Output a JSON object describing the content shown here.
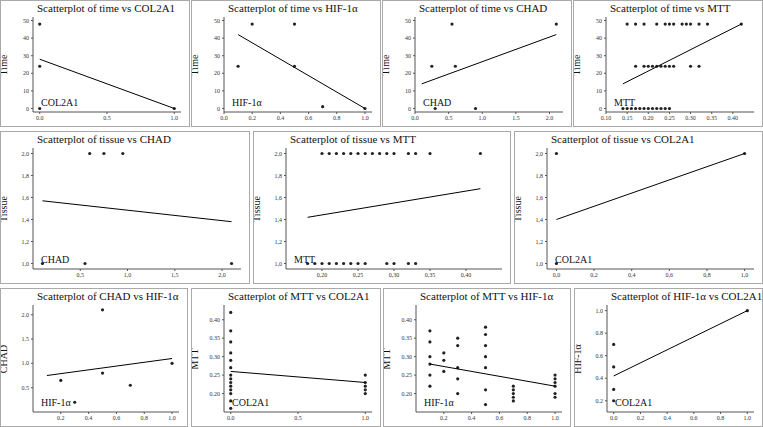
{
  "chart_data": [
    {
      "type": "scatter",
      "title": "Scatterplot of time vs COL2A1",
      "xlabel": "COL2A1",
      "ylabel": "Time",
      "x": [
        0,
        0,
        0,
        1
      ],
      "values": [
        48,
        24,
        0,
        0
      ],
      "trend": {
        "x": [
          0,
          1
        ],
        "values": [
          28,
          0
        ]
      },
      "xlim": [
        -0.05,
        1.05
      ],
      "ylim": [
        -2,
        52
      ],
      "xticks": [
        {
          "value": 0,
          "label": "0.0"
        },
        0.5,
        {
          "value": 1,
          "label": "1.0"
        }
      ],
      "yticks": [
        0,
        10,
        20,
        30,
        40,
        50
      ]
    },
    {
      "type": "scatter",
      "title": "Scatterplot of time vs HIF-1α",
      "xlabel": "HIF-1α",
      "ylabel": "Time",
      "x": [
        0.1,
        0.2,
        0.5,
        0.5,
        0.7,
        1.0
      ],
      "values": [
        24,
        48,
        48,
        24,
        1,
        0
      ],
      "trend": {
        "x": [
          0.1,
          1.0
        ],
        "values": [
          42,
          0
        ]
      },
      "xlim": [
        0,
        1.05
      ],
      "ylim": [
        -2,
        52
      ],
      "xticks": [
        {
          "value": 0,
          "label": "0.0"
        },
        0.2,
        0.4,
        0.6,
        0.8,
        {
          "value": 1,
          "label": "1.0"
        }
      ],
      "yticks": [
        0,
        10,
        20,
        30,
        40,
        50
      ]
    },
    {
      "type": "scatter",
      "title": "Scatterplot of time vs CHAD",
      "xlabel": "CHAD",
      "ylabel": "Time",
      "x": [
        0.25,
        0.6,
        0.3,
        0.9,
        0.55,
        2.1
      ],
      "values": [
        24,
        24,
        0,
        0,
        48,
        48
      ],
      "trend": {
        "x": [
          0.1,
          2.1
        ],
        "values": [
          14,
          42
        ]
      },
      "xlim": [
        0,
        2.2
      ],
      "ylim": [
        -2,
        52
      ],
      "xticks": [
        {
          "value": 0,
          "label": "0.0"
        },
        0.5,
        {
          "value": 1,
          "label": "1.0"
        },
        1.5,
        {
          "value": 2,
          "label": "2.0"
        }
      ],
      "yticks": [
        0,
        10,
        20,
        30,
        40,
        50
      ]
    },
    {
      "type": "scatter",
      "title": "Scatterplot of time vs MTT",
      "xlabel": "MTT",
      "ylabel": "Time",
      "x": [
        0.15,
        0.17,
        0.19,
        0.22,
        0.24,
        0.25,
        0.26,
        0.28,
        0.29,
        0.3,
        0.32,
        0.34,
        0.42,
        0.17,
        0.19,
        0.2,
        0.21,
        0.22,
        0.23,
        0.24,
        0.25,
        0.26,
        0.3,
        0.32,
        0.14,
        0.15,
        0.16,
        0.17,
        0.18,
        0.19,
        0.2,
        0.21,
        0.22,
        0.23,
        0.24,
        0.25
      ],
      "values": [
        48,
        48,
        48,
        48,
        48,
        48,
        48,
        48,
        48,
        48,
        48,
        48,
        48,
        24,
        24,
        24,
        24,
        24,
        24,
        24,
        24,
        24,
        24,
        24,
        0,
        0,
        0,
        0,
        0,
        0,
        0,
        0,
        0,
        0,
        0,
        0
      ],
      "trend": {
        "x": [
          0.14,
          0.42
        ],
        "values": [
          14,
          48
        ]
      },
      "xlim": [
        0.1,
        0.45
      ],
      "ylim": [
        -2,
        52
      ],
      "xticks": [
        {
          "value": 0.1,
          "label": "0.10"
        },
        0.15,
        {
          "value": 0.2,
          "label": "0.20"
        },
        0.25,
        {
          "value": 0.3,
          "label": "0.30"
        },
        0.35,
        {
          "value": 0.4,
          "label": "0.40"
        }
      ],
      "yticks": [
        0,
        10,
        20,
        30,
        40,
        50
      ]
    },
    {
      "type": "scatter",
      "title": "Scatterplot of tissue vs CHAD",
      "xlabel": "CHAD",
      "ylabel": "Tissue",
      "x": [
        0.6,
        0.75,
        0.95,
        0.1,
        0.55,
        2.1
      ],
      "values": [
        2,
        2,
        2,
        1,
        1,
        1
      ],
      "trend": {
        "x": [
          0.1,
          2.1
        ],
        "values": [
          1.57,
          1.38
        ]
      },
      "xlim": [
        0,
        2.2
      ],
      "ylim": [
        0.95,
        2.05
      ],
      "xticks": [
        {
          "value": 0.5,
          "label": "0,5"
        },
        {
          "value": 1,
          "label": "1,0"
        },
        {
          "value": 1.5,
          "label": "1,5"
        },
        {
          "value": 2,
          "label": "2,0"
        }
      ],
      "yticks": [
        {
          "value": 1,
          "label": "1,0"
        },
        {
          "value": 1.2,
          "label": "1,2"
        },
        {
          "value": 1.4,
          "label": "1,4"
        },
        {
          "value": 1.6,
          "label": "1,6"
        },
        {
          "value": 1.8,
          "label": "1,8"
        },
        {
          "value": 2,
          "label": "2,0"
        }
      ]
    },
    {
      "type": "scatter",
      "title": "Scatterplot of tissue vs MTT",
      "xlabel": "MTT",
      "ylabel": "Tissue",
      "x": [
        0.2,
        0.21,
        0.22,
        0.23,
        0.24,
        0.25,
        0.26,
        0.27,
        0.28,
        0.29,
        0.3,
        0.32,
        0.33,
        0.35,
        0.42,
        0.18,
        0.19,
        0.2,
        0.21,
        0.22,
        0.23,
        0.24,
        0.25,
        0.26,
        0.29,
        0.3,
        0.32,
        0.33
      ],
      "values": [
        2,
        2,
        2,
        2,
        2,
        2,
        2,
        2,
        2,
        2,
        2,
        2,
        2,
        2,
        2,
        1,
        1,
        1,
        1,
        1,
        1,
        1,
        1,
        1,
        1,
        1,
        1,
        1
      ],
      "trend": {
        "x": [
          0.18,
          0.42
        ],
        "values": [
          1.42,
          1.68
        ]
      },
      "xlim": [
        0.15,
        0.45
      ],
      "ylim": [
        0.95,
        2.05
      ],
      "xticks": [
        {
          "value": 0.2,
          "label": "0,20"
        },
        {
          "value": 0.25,
          "label": "0,25"
        },
        {
          "value": 0.3,
          "label": "0,30"
        },
        {
          "value": 0.35,
          "label": "0,35"
        },
        {
          "value": 0.4,
          "label": "0,40"
        }
      ],
      "yticks": [
        {
          "value": 1,
          "label": "1,0"
        },
        {
          "value": 1.2,
          "label": "1,2"
        },
        {
          "value": 1.4,
          "label": "1,4"
        },
        {
          "value": 1.6,
          "label": "1,6"
        },
        {
          "value": 1.8,
          "label": "1,8"
        },
        {
          "value": 2,
          "label": "2,0"
        }
      ]
    },
    {
      "type": "scatter",
      "title": "Scatterplot of tissue vs COL2A1",
      "xlabel": "COL2A1",
      "ylabel": "Tissue",
      "x": [
        0,
        0,
        1
      ],
      "values": [
        2,
        1,
        2
      ],
      "trend": {
        "x": [
          0,
          1
        ],
        "values": [
          1.4,
          2
        ]
      },
      "xlim": [
        -0.05,
        1.05
      ],
      "ylim": [
        0.95,
        2.05
      ],
      "xticks": [
        {
          "value": 0,
          "label": "0,0"
        },
        {
          "value": 0.2,
          "label": "0,2"
        },
        {
          "value": 0.4,
          "label": "0,4"
        },
        {
          "value": 0.6,
          "label": "0,6"
        },
        {
          "value": 0.8,
          "label": "0,8"
        },
        {
          "value": 1,
          "label": "1,0"
        }
      ],
      "yticks": [
        {
          "value": 1,
          "label": "1,0"
        },
        {
          "value": 1.2,
          "label": "1,2"
        },
        {
          "value": 1.4,
          "label": "1,4"
        },
        {
          "value": 1.6,
          "label": "1,6"
        },
        {
          "value": 1.8,
          "label": "1,8"
        },
        {
          "value": 2,
          "label": "2,0"
        }
      ]
    },
    {
      "type": "scatter",
      "title": "Scatterplot of CHAD vs HIF-1α",
      "xlabel": "HIF-1α",
      "ylabel": "CHAD",
      "x": [
        0.2,
        0.3,
        0.5,
        0.5,
        0.7,
        1.0
      ],
      "values": [
        0.65,
        0.2,
        2.1,
        0.8,
        0.55,
        1.0
      ],
      "trend": {
        "x": [
          0.1,
          1.0
        ],
        "values": [
          0.75,
          1.1
        ]
      },
      "xlim": [
        0,
        1.05
      ],
      "ylim": [
        0,
        2.2
      ],
      "xticks": [
        0.2,
        0.4,
        0.6,
        0.8,
        {
          "value": 1,
          "label": "1.0"
        }
      ],
      "yticks": [
        0.5,
        {
          "value": 1,
          "label": "1.0"
        },
        1.5,
        {
          "value": 2,
          "label": "2.0"
        }
      ]
    },
    {
      "type": "scatter",
      "title": "Scatterplot of MTT vs COL2A1",
      "xlabel": "COL2A1",
      "ylabel": "MTT",
      "x": [
        0,
        0,
        0,
        0,
        0,
        0,
        0,
        0,
        0,
        0,
        0,
        0,
        0,
        0,
        1,
        1,
        1,
        1,
        1
      ],
      "values": [
        0.16,
        0.18,
        0.2,
        0.21,
        0.22,
        0.23,
        0.24,
        0.25,
        0.27,
        0.29,
        0.31,
        0.34,
        0.37,
        0.42,
        0.2,
        0.21,
        0.22,
        0.23,
        0.25
      ],
      "trend": {
        "x": [
          0,
          1
        ],
        "values": [
          0.26,
          0.23
        ]
      },
      "xlim": [
        -0.05,
        1.05
      ],
      "ylim": [
        0.15,
        0.44
      ],
      "xticks": [
        {
          "value": 0,
          "label": "0.0"
        },
        0.5,
        {
          "value": 1,
          "label": "1.0"
        }
      ],
      "yticks": [
        {
          "value": 0.2,
          "label": "0.20"
        },
        0.25,
        {
          "value": 0.3,
          "label": "0.30"
        },
        0.35,
        {
          "value": 0.4,
          "label": "0.40"
        }
      ]
    },
    {
      "type": "scatter",
      "title": "Scatterplot of MTT vs HIF-1α",
      "xlabel": "HIF-1α",
      "ylabel": "MTT",
      "x": [
        0.1,
        0.1,
        0.1,
        0.1,
        0.1,
        0.1,
        0.2,
        0.2,
        0.2,
        0.3,
        0.3,
        0.3,
        0.3,
        0.3,
        0.5,
        0.5,
        0.5,
        0.5,
        0.5,
        0.5,
        0.5,
        0.7,
        0.7,
        0.7,
        0.7,
        0.7,
        1.0,
        1.0,
        1.0,
        1.0,
        1.0,
        1.0
      ],
      "values": [
        0.22,
        0.25,
        0.28,
        0.3,
        0.34,
        0.37,
        0.26,
        0.29,
        0.31,
        0.2,
        0.24,
        0.27,
        0.33,
        0.35,
        0.17,
        0.21,
        0.27,
        0.3,
        0.33,
        0.36,
        0.38,
        0.18,
        0.19,
        0.2,
        0.21,
        0.22,
        0.19,
        0.2,
        0.22,
        0.23,
        0.24,
        0.25
      ],
      "trend": {
        "x": [
          0.1,
          1.0
        ],
        "values": [
          0.28,
          0.22
        ]
      },
      "xlim": [
        0,
        1.05
      ],
      "ylim": [
        0.15,
        0.44
      ],
      "xticks": [
        0.2,
        0.4,
        0.6,
        0.8,
        {
          "value": 1,
          "label": "1.0"
        }
      ],
      "yticks": [
        {
          "value": 0.2,
          "label": "0.20"
        },
        0.25,
        {
          "value": 0.3,
          "label": "0.30"
        },
        0.35,
        {
          "value": 0.4,
          "label": "0.40"
        }
      ]
    },
    {
      "type": "scatter",
      "title": "Scatterplot of HIF-1α vs COL2A1",
      "xlabel": "COL2A1",
      "ylabel": "HIF-1α",
      "x": [
        0,
        0,
        0,
        0,
        1
      ],
      "values": [
        0.2,
        0.3,
        0.5,
        0.7,
        1.0
      ],
      "trend": {
        "x": [
          0,
          1
        ],
        "values": [
          0.42,
          1.0
        ]
      },
      "xlim": [
        -0.05,
        1.05
      ],
      "ylim": [
        0.1,
        1.05
      ],
      "xticks": [
        {
          "value": 0,
          "label": "0.0"
        },
        0.2,
        0.4,
        0.6,
        0.8,
        {
          "value": 1,
          "label": "1.0"
        }
      ],
      "yticks": [
        0.2,
        0.4,
        0.6,
        0.8,
        {
          "value": 1,
          "label": "1.0"
        }
      ]
    }
  ]
}
